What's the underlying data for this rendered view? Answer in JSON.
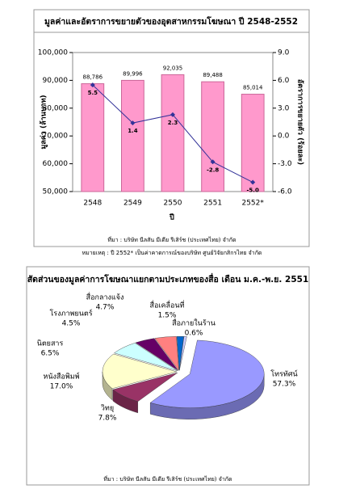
{
  "chart_data": [
    {
      "type": "bar-line",
      "title": "มูลค่าและอัตราการขยายตัวของอุตสาหกรรมโฆษณา ปี 2548-2552",
      "y_label": "มูลค่า (ล้านบาท)",
      "y2_label": "อัตราการขยายตัว (ร้อยละ)",
      "x_label": "ปี",
      "categories": [
        "2548",
        "2549",
        "2550",
        "2551",
        "2552*"
      ],
      "series": [
        {
          "name": "มูลค่า",
          "type": "bar",
          "color": "#ff99cc",
          "values": [
            88786,
            89996,
            92035,
            89488,
            85014
          ],
          "value_labels": [
            "88,786",
            "89,996",
            "92,035",
            "89,488",
            "85,014"
          ]
        },
        {
          "name": "อัตราการขยายตัว",
          "type": "line",
          "axis": "y2",
          "color": "#333399",
          "values": [
            5.5,
            1.4,
            2.3,
            -2.8,
            -5.0
          ],
          "value_labels": [
            "5.5",
            "1.4",
            "2.3",
            "-2.8",
            "-5.0"
          ]
        }
      ],
      "ylim": [
        50000,
        100000
      ],
      "yticks": [
        {
          "value": 50000,
          "label": "50,000"
        },
        {
          "value": 60000,
          "label": "60,000"
        },
        {
          "value": 70000,
          "label": "70,000"
        },
        {
          "value": 80000,
          "label": "80,000"
        },
        {
          "value": 90000,
          "label": "90,000"
        },
        {
          "value": 100000,
          "label": "100,000"
        }
      ],
      "y2lim": [
        -6,
        9
      ],
      "y2ticks": [
        {
          "value": -6,
          "label": "-6.0"
        },
        {
          "value": -3,
          "label": "-3.0"
        },
        {
          "value": 0,
          "label": "0.0"
        },
        {
          "value": 3,
          "label": "3.0"
        },
        {
          "value": 6,
          "label": "6.0"
        },
        {
          "value": 9,
          "label": "9.0"
        }
      ],
      "grid": false,
      "source": "ที่มา : บริษัท นีลสัน มีเดีย รีเสิร์ช (ประเทศไทย) จำกัด",
      "note": "หมายเหตุ : ปี 2552* เป็นค่าคาดการณ์ของบริษัท ศูนย์วิจัยกสิกรไทย จำกัด"
    },
    {
      "type": "pie",
      "title": "สัดส่วนของมูลค่าการโฆษณาแยกตามประเภทของสื่อ เดือน ม.ค.-พ.ย. 2551",
      "categories": [
        "โทรทัศน์",
        "วิทยุ",
        "หนังสือพิมพ์",
        "นิตยสาร",
        "โรงภาพยนตร์",
        "สื่อกลางแจ้ง",
        "สื่อเคลื่อนที่",
        "สื่อภายในร้าน"
      ],
      "values": [
        57.3,
        7.8,
        17.0,
        6.5,
        4.5,
        4.7,
        1.5,
        0.6
      ],
      "value_labels": [
        "57.3%",
        "7.8%",
        "17.0%",
        "6.5%",
        "4.5%",
        "4.7%",
        "1.5%",
        "0.6%"
      ],
      "colors": [
        "#9999ff",
        "#993366",
        "#ffffcc",
        "#ccffff",
        "#660066",
        "#ff8080",
        "#0066cc",
        "#ccccff"
      ],
      "source": "ที่มา : บริษัท นีลสัน มีเดีย รีเสิร์ช (ประเทศไทย) จำกัด"
    }
  ]
}
